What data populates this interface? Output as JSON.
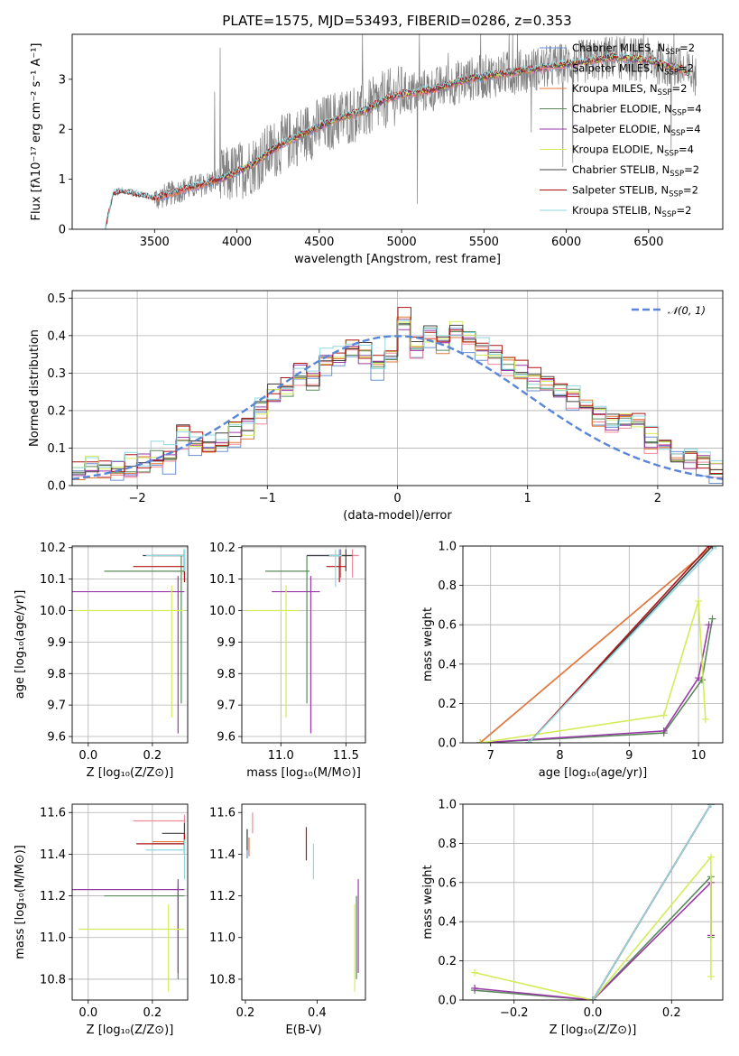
{
  "title": "PLATE=1575, MJD=53493, FIBERID=0286, z=0.353",
  "palette": {
    "Chabrier MILES": "#6a8fd0",
    "Salpeter MILES": "#f08a9a",
    "Kroupa MILES": "#e07a3a",
    "Chabrier ELODIE": "#5a8a5a",
    "Salpeter ELODIE": "#9a3aa8",
    "Kroupa ELODIE": "#d4ec5a",
    "Chabrier STELIB": "#444444",
    "Salpeter STELIB": "#b01515",
    "Kroupa STELIB": "#8fd8e0",
    "data": "#808080",
    "gaussian": "#5b86d8"
  },
  "chart_data": [
    {
      "id": "spectrum",
      "type": "line",
      "title": "PLATE=1575, MJD=53493, FIBERID=0286, z=0.353",
      "xlabel": "wavelength [Angstrom, rest frame]",
      "ylabel": "Flux [fλ10⁻¹⁷ erg cm⁻² s⁻¹ A⁻¹]",
      "xlim": [
        3000,
        6950
      ],
      "ylim": [
        0,
        3.9
      ],
      "xticks": [
        3500,
        4000,
        4500,
        5000,
        5500,
        6000,
        6500
      ],
      "yticks": [
        0,
        1,
        2,
        3
      ],
      "grid": false,
      "legend": {
        "placement": "top-right",
        "entries": [
          {
            "name": "Chabrier MILES",
            "nssp": "2"
          },
          {
            "name": "Salpeter MILES",
            "nssp": "2"
          },
          {
            "name": "Kroupa MILES",
            "nssp": "2"
          },
          {
            "name": "Chabrier ELODIE",
            "nssp": "4"
          },
          {
            "name": "Salpeter ELODIE",
            "nssp": "4"
          },
          {
            "name": "Kroupa ELODIE",
            "nssp": "4"
          },
          {
            "name": "Chabrier STELIB",
            "nssp": "2"
          },
          {
            "name": "Salpeter STELIB",
            "nssp": "2"
          },
          {
            "name": "Kroupa STELIB",
            "nssp": "2"
          }
        ]
      },
      "continuum": {
        "x": [
          3200,
          3250,
          3300,
          3400,
          3500,
          3600,
          3700,
          3800,
          3900,
          4000,
          4100,
          4200,
          4300,
          4400,
          4500,
          4600,
          4700,
          4800,
          4900,
          5000,
          5100,
          5200,
          5300,
          5400,
          5500,
          5600,
          5700,
          5800,
          5900,
          6000,
          6100,
          6200,
          6300,
          6400,
          6500,
          6600,
          6700,
          6750
        ],
        "y": [
          0.0,
          0.7,
          0.75,
          0.68,
          0.6,
          0.72,
          0.82,
          0.9,
          1.0,
          1.15,
          1.3,
          1.55,
          1.75,
          1.9,
          2.05,
          2.2,
          2.3,
          2.4,
          2.6,
          2.7,
          2.75,
          2.8,
          2.9,
          3.0,
          3.05,
          3.1,
          3.15,
          3.2,
          3.25,
          3.3,
          3.35,
          3.4,
          3.45,
          3.4,
          3.38,
          3.3,
          3.2,
          3.1
        ]
      },
      "data_xrange": [
        3200,
        6790
      ],
      "model_xranges": {
        "MILES": [
          3500,
          6750
        ],
        "ELODIE": [
          3900,
          6750
        ],
        "STELIB": [
          3200,
          6750
        ]
      }
    },
    {
      "id": "residuals",
      "type": "line",
      "xlabel": "(data-model)/error",
      "ylabel": "Normed distribution",
      "xlim": [
        -2.5,
        2.5
      ],
      "ylim": [
        0,
        0.52
      ],
      "xticks": [
        -2,
        -1,
        0,
        1,
        2
      ],
      "yticks": [
        0.0,
        0.1,
        0.2,
        0.3,
        0.4,
        0.5
      ],
      "grid": true,
      "legend": {
        "placement": "top-right",
        "entries": [
          {
            "name": "𝒩(0, 1)"
          }
        ]
      },
      "bins_edges_range": [
        -2.5,
        2.5
      ],
      "bin_width": 0.1,
      "base_distribution": [
        0.04,
        0.05,
        0.05,
        0.04,
        0.05,
        0.06,
        0.08,
        0.07,
        0.13,
        0.11,
        0.1,
        0.12,
        0.14,
        0.15,
        0.2,
        0.24,
        0.26,
        0.3,
        0.28,
        0.33,
        0.34,
        0.36,
        0.35,
        0.32,
        0.36,
        0.44,
        0.37,
        0.4,
        0.38,
        0.41,
        0.39,
        0.36,
        0.34,
        0.32,
        0.3,
        0.28,
        0.27,
        0.25,
        0.24,
        0.22,
        0.18,
        0.17,
        0.18,
        0.16,
        0.12,
        0.1,
        0.08,
        0.07,
        0.06,
        0.04
      ],
      "gaussian": {
        "mean": 0,
        "sigma": 1
      }
    },
    {
      "id": "age_vs_Z",
      "type": "errorbar",
      "xlabel": "Z [log₁₀(Z/Z⊙)]",
      "ylabel": "age  [log₁₀(age/yr)]",
      "xlim": [
        -0.05,
        0.31
      ],
      "ylim": [
        9.58,
        10.205
      ],
      "xticks": [
        0.0,
        0.2
      ],
      "yticks": [
        9.6,
        9.7,
        9.8,
        9.9,
        10.0,
        10.1,
        10.2
      ],
      "grid": true,
      "points": [
        {
          "model": "Chabrier MILES",
          "x": 0.3,
          "y": 10.175,
          "xerr": [
            0.1,
            0.0
          ],
          "yerr": [
            0.06,
            0.02
          ]
        },
        {
          "model": "Salpeter MILES",
          "x": 0.3,
          "y": 10.175,
          "xerr": [
            0.1,
            0.0
          ],
          "yerr": [
            0.07,
            0.02
          ]
        },
        {
          "model": "Kroupa MILES",
          "x": 0.3,
          "y": 10.175,
          "xerr": [
            0.1,
            0.0
          ],
          "yerr": [
            0.06,
            0.02
          ]
        },
        {
          "model": "Chabrier ELODIE",
          "x": 0.29,
          "y": 10.125,
          "xerr": [
            0.24,
            0.01
          ],
          "yerr": [
            0.42,
            0.05
          ]
        },
        {
          "model": "Salpeter ELODIE",
          "x": 0.28,
          "y": 10.06,
          "xerr": [
            0.33,
            0.02
          ],
          "yerr": [
            0.45,
            0.05
          ]
        },
        {
          "model": "Kroupa ELODIE",
          "x": 0.26,
          "y": 10.0,
          "xerr": [
            0.3,
            0.04
          ],
          "yerr": [
            0.34,
            0.08
          ]
        },
        {
          "model": "Chabrier STELIB",
          "x": 0.3,
          "y": 10.175,
          "xerr": [
            0.13,
            0.0
          ],
          "yerr": [
            0.05,
            0.02
          ]
        },
        {
          "model": "Salpeter STELIB",
          "x": 0.3,
          "y": 10.14,
          "xerr": [
            0.16,
            0.0
          ],
          "yerr": [
            0.05,
            0.03
          ]
        },
        {
          "model": "Kroupa STELIB",
          "x": 0.3,
          "y": 10.175,
          "xerr": [
            0.12,
            0.0
          ],
          "yerr": [
            0.05,
            0.02
          ]
        }
      ]
    },
    {
      "id": "age_vs_mass",
      "type": "errorbar",
      "xlabel": "mass [log₁₀(M/M⊙)]",
      "ylim": [
        9.58,
        10.205
      ],
      "xlim": [
        10.7,
        11.65
      ],
      "xticks": [
        11.0,
        11.5
      ],
      "yticks": [
        9.6,
        9.7,
        9.8,
        9.9,
        10.0,
        10.1,
        10.2
      ],
      "grid": true,
      "points": [
        {
          "model": "Chabrier MILES",
          "x": 11.45,
          "y": 10.175,
          "xerr": [
            0.25,
            0.05
          ],
          "yerr": [
            0.07,
            0.02
          ]
        },
        {
          "model": "Salpeter MILES",
          "x": 11.55,
          "y": 10.175,
          "xerr": [
            0.2,
            0.05
          ],
          "yerr": [
            0.07,
            0.02
          ]
        },
        {
          "model": "Kroupa MILES",
          "x": 11.46,
          "y": 10.175,
          "xerr": [
            0.1,
            0.05
          ],
          "yerr": [
            0.07,
            0.02
          ]
        },
        {
          "model": "Chabrier ELODIE",
          "x": 11.2,
          "y": 10.125,
          "xerr": [
            0.32,
            0.02
          ],
          "yerr": [
            0.42,
            0.05
          ]
        },
        {
          "model": "Salpeter ELODIE",
          "x": 11.23,
          "y": 10.06,
          "xerr": [
            0.3,
            0.07
          ],
          "yerr": [
            0.45,
            0.05
          ]
        },
        {
          "model": "Kroupa ELODIE",
          "x": 11.04,
          "y": 10.0,
          "xerr": [
            0.3,
            0.1
          ],
          "yerr": [
            0.34,
            0.08
          ]
        },
        {
          "model": "Chabrier STELIB",
          "x": 11.5,
          "y": 10.175,
          "xerr": [
            0.3,
            0.05
          ],
          "yerr": [
            0.05,
            0.02
          ]
        },
        {
          "model": "Salpeter STELIB",
          "x": 11.45,
          "y": 10.14,
          "xerr": [
            0.1,
            0.05
          ],
          "yerr": [
            0.05,
            0.03
          ]
        },
        {
          "model": "Kroupa STELIB",
          "x": 11.42,
          "y": 10.175,
          "xerr": [
            0.05,
            0.05
          ],
          "yerr": [
            0.1,
            0.02
          ]
        }
      ]
    },
    {
      "id": "massweight_vs_age",
      "type": "line",
      "xlabel": "age  [log₁₀(age/yr)]",
      "ylabel": "mass weight",
      "xlim": [
        6.6,
        10.35
      ],
      "ylim": [
        0,
        1
      ],
      "xticks": [
        7,
        8,
        9,
        10
      ],
      "yticks": [
        0.0,
        0.2,
        0.4,
        0.6,
        0.8,
        1.0
      ],
      "grid": true,
      "series": [
        {
          "model": "Chabrier MILES",
          "x": [
            7.55,
            10.2
          ],
          "y": [
            0.0,
            1.0
          ]
        },
        {
          "model": "Salpeter MILES",
          "x": [
            6.85,
            10.2
          ],
          "y": [
            0.0,
            1.0
          ]
        },
        {
          "model": "Kroupa MILES",
          "x": [
            6.85,
            10.2
          ],
          "y": [
            0.0,
            1.0
          ]
        },
        {
          "model": "Chabrier ELODIE",
          "x": [
            6.85,
            9.5,
            10.05,
            10.2
          ],
          "y": [
            0.0,
            0.05,
            0.32,
            0.63
          ]
        },
        {
          "model": "Salpeter ELODIE",
          "x": [
            6.85,
            9.5,
            10.0,
            10.15
          ],
          "y": [
            0.0,
            0.06,
            0.33,
            0.6
          ]
        },
        {
          "model": "Kroupa ELODIE",
          "x": [
            6.85,
            9.5,
            10.0,
            10.1
          ],
          "y": [
            0.0,
            0.14,
            0.72,
            0.12
          ]
        },
        {
          "model": "Chabrier STELIB",
          "x": [
            7.55,
            10.2
          ],
          "y": [
            0.0,
            1.0
          ]
        },
        {
          "model": "Salpeter STELIB",
          "x": [
            7.55,
            10.15
          ],
          "y": [
            0.0,
            1.0
          ]
        },
        {
          "model": "Kroupa STELIB",
          "x": [
            7.55,
            10.25
          ],
          "y": [
            0.0,
            1.0
          ]
        }
      ]
    },
    {
      "id": "mass_vs_Z",
      "type": "errorbar",
      "xlabel": "Z [log₁₀(Z/Z⊙)]",
      "ylabel": "mass [log₁₀(M/M⊙)]",
      "xlim": [
        -0.05,
        0.31
      ],
      "ylim": [
        10.7,
        11.64
      ],
      "xticks": [
        0.0,
        0.2
      ],
      "yticks": [
        10.8,
        11.0,
        11.2,
        11.4,
        11.6
      ],
      "grid": true,
      "points": [
        {
          "model": "Chabrier MILES",
          "x": 0.3,
          "y": 11.45,
          "xerr": [
            0.1,
            0.0
          ],
          "yerr": [
            0.05,
            0.05
          ]
        },
        {
          "model": "Salpeter MILES",
          "x": 0.3,
          "y": 11.56,
          "xerr": [
            0.16,
            0.0
          ],
          "yerr": [
            0.05,
            0.03
          ]
        },
        {
          "model": "Kroupa MILES",
          "x": 0.3,
          "y": 11.46,
          "xerr": [
            0.1,
            0.0
          ],
          "yerr": [
            0.05,
            0.03
          ]
        },
        {
          "model": "Chabrier ELODIE",
          "x": 0.28,
          "y": 11.2,
          "xerr": [
            0.23,
            0.02
          ],
          "yerr": [
            0.4,
            0.05
          ]
        },
        {
          "model": "Salpeter ELODIE",
          "x": 0.28,
          "y": 11.23,
          "xerr": [
            0.33,
            0.02
          ],
          "yerr": [
            0.4,
            0.05
          ]
        },
        {
          "model": "Kroupa ELODIE",
          "x": 0.25,
          "y": 11.04,
          "xerr": [
            0.28,
            0.05
          ],
          "yerr": [
            0.3,
            0.12
          ]
        },
        {
          "model": "Chabrier STELIB",
          "x": 0.3,
          "y": 11.5,
          "xerr": [
            0.07,
            0.0
          ],
          "yerr": [
            0.05,
            0.05
          ]
        },
        {
          "model": "Salpeter STELIB",
          "x": 0.3,
          "y": 11.45,
          "xerr": [
            0.15,
            0.0
          ],
          "yerr": [
            0.05,
            0.05
          ]
        },
        {
          "model": "Kroupa STELIB",
          "x": 0.3,
          "y": 11.42,
          "xerr": [
            0.12,
            0.0
          ],
          "yerr": [
            0.14,
            0.05
          ]
        }
      ]
    },
    {
      "id": "mass_vs_ebv",
      "type": "errorbar",
      "xlabel": "E(B-V)",
      "xlim": [
        0.19,
        0.535
      ],
      "ylim": [
        10.7,
        11.64
      ],
      "xticks": [
        0.2,
        0.4
      ],
      "yticks": [
        10.8,
        11.0,
        11.2,
        11.4,
        11.6
      ],
      "grid": false,
      "points": [
        {
          "model": "Chabrier MILES",
          "x": 0.205,
          "y": 11.45,
          "xerr": [
            0.0,
            0.0
          ],
          "yerr": [
            0.07,
            0.07
          ]
        },
        {
          "model": "Salpeter MILES",
          "x": 0.22,
          "y": 11.55,
          "xerr": [
            0.0,
            0.0
          ],
          "yerr": [
            0.05,
            0.05
          ]
        },
        {
          "model": "Kroupa MILES",
          "x": 0.21,
          "y": 11.44,
          "xerr": [
            0.0,
            0.0
          ],
          "yerr": [
            0.05,
            0.04
          ]
        },
        {
          "model": "Chabrier ELODIE",
          "x": 0.51,
          "y": 11.2,
          "xerr": [
            0.0,
            0.0
          ],
          "yerr": [
            0.4,
            0.0
          ]
        },
        {
          "model": "Salpeter ELODIE",
          "x": 0.515,
          "y": 11.23,
          "xerr": [
            0.0,
            0.0
          ],
          "yerr": [
            0.4,
            0.05
          ]
        },
        {
          "model": "Kroupa ELODIE",
          "x": 0.505,
          "y": 11.04,
          "xerr": [
            0.0,
            0.0
          ],
          "yerr": [
            0.3,
            0.12
          ]
        },
        {
          "model": "Chabrier STELIB",
          "x": 0.205,
          "y": 11.47,
          "xerr": [
            0.0,
            0.0
          ],
          "yerr": [
            0.05,
            0.05
          ]
        },
        {
          "model": "Salpeter STELIB",
          "x": 0.37,
          "y": 11.45,
          "xerr": [
            0.0,
            0.0
          ],
          "yerr": [
            0.08,
            0.08
          ]
        },
        {
          "model": "Kroupa STELIB",
          "x": 0.39,
          "y": 11.4,
          "xerr": [
            0.0,
            0.0
          ],
          "yerr": [
            0.12,
            0.05
          ]
        }
      ]
    },
    {
      "id": "massweight_vs_Z",
      "type": "line",
      "xlabel": "Z [log₁₀(Z/Z⊙)]",
      "ylabel": "mass weight",
      "xlim": [
        -0.33,
        0.33
      ],
      "ylim": [
        0,
        1
      ],
      "xticks": [
        -0.2,
        0.0,
        0.2
      ],
      "yticks": [
        0.0,
        0.2,
        0.4,
        0.6,
        0.8,
        1.0
      ],
      "grid": true,
      "series": [
        {
          "model": "Chabrier MILES",
          "x": [
            0.0,
            0.3
          ],
          "y": [
            0.0,
            1.0
          ]
        },
        {
          "model": "Salpeter MILES",
          "x": [
            0.0,
            0.3
          ],
          "y": [
            0.0,
            1.0
          ]
        },
        {
          "model": "Kroupa MILES",
          "x": [
            0.0,
            0.3
          ],
          "y": [
            0.0,
            1.0
          ]
        },
        {
          "model": "Chabrier ELODIE",
          "x": [
            -0.3,
            0.0,
            0.3,
            0.3
          ],
          "y": [
            0.05,
            0.0,
            0.63,
            0.32
          ]
        },
        {
          "model": "Salpeter ELODIE",
          "x": [
            -0.3,
            0.0,
            0.3,
            0.3
          ],
          "y": [
            0.06,
            0.0,
            0.6,
            0.33
          ]
        },
        {
          "model": "Kroupa ELODIE",
          "x": [
            -0.3,
            0.0,
            0.3,
            0.3
          ],
          "y": [
            0.14,
            0.0,
            0.73,
            0.12
          ]
        },
        {
          "model": "Chabrier STELIB",
          "x": [
            0.0,
            0.3
          ],
          "y": [
            0.0,
            1.0
          ]
        },
        {
          "model": "Salpeter STELIB",
          "x": [
            0.0,
            0.3
          ],
          "y": [
            0.0,
            1.0
          ]
        },
        {
          "model": "Kroupa STELIB",
          "x": [
            0.0,
            0.3
          ],
          "y": [
            0.0,
            1.0
          ]
        }
      ]
    }
  ]
}
